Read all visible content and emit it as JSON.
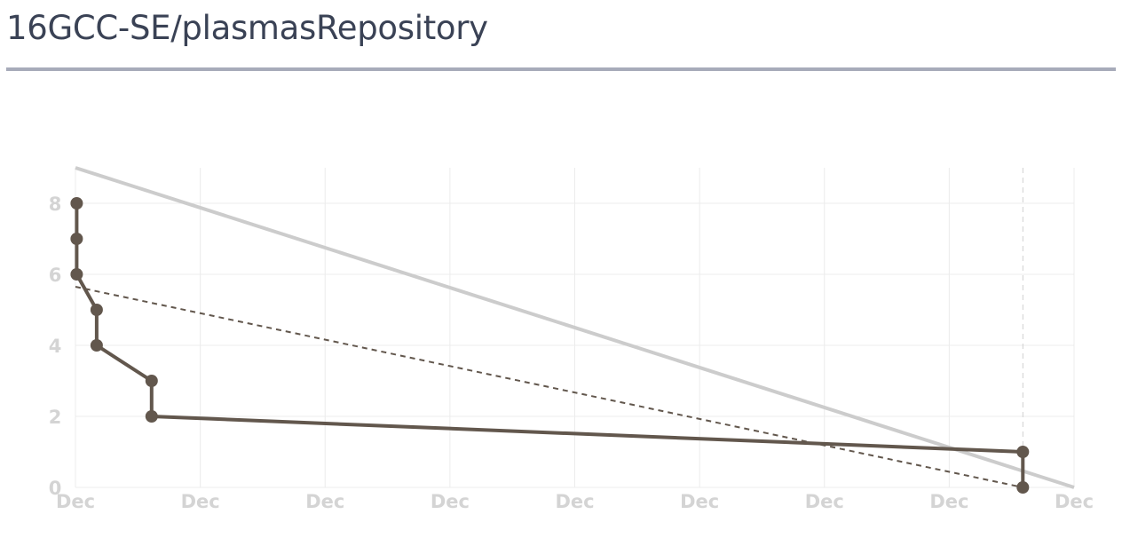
{
  "header": {
    "title": "16GCC-SE/plasmasRepository"
  },
  "chart_data": {
    "type": "line",
    "title": "16GCC-SE/plasmasRepository",
    "xlabel": "",
    "ylabel": "",
    "x_tick_labels": [
      "Dec",
      "Dec",
      "Dec",
      "Dec",
      "Dec",
      "Dec",
      "Dec",
      "Dec",
      "Dec"
    ],
    "y_ticks": [
      "0",
      "2",
      "4",
      "6",
      "8"
    ],
    "xlim": [
      0,
      8
    ],
    "ylim": [
      0,
      9
    ],
    "grid": true,
    "series": [
      {
        "role": "actual",
        "color": "#62574d",
        "x": [
          0.01,
          0.01,
          0.01,
          0.17,
          0.17,
          0.61,
          0.61,
          7.59,
          7.59
        ],
        "y": [
          8,
          7,
          6,
          5,
          4,
          3,
          2,
          1,
          0
        ]
      },
      {
        "role": "ideal",
        "color": "#cccccc",
        "x": [
          0,
          8
        ],
        "y": [
          9,
          0
        ]
      },
      {
        "role": "trend",
        "color": "#62574d",
        "style": "dashed",
        "x": [
          0,
          7.59
        ],
        "y": [
          5.65,
          0
        ]
      }
    ],
    "marker_vertical_line_x": 7.59
  }
}
